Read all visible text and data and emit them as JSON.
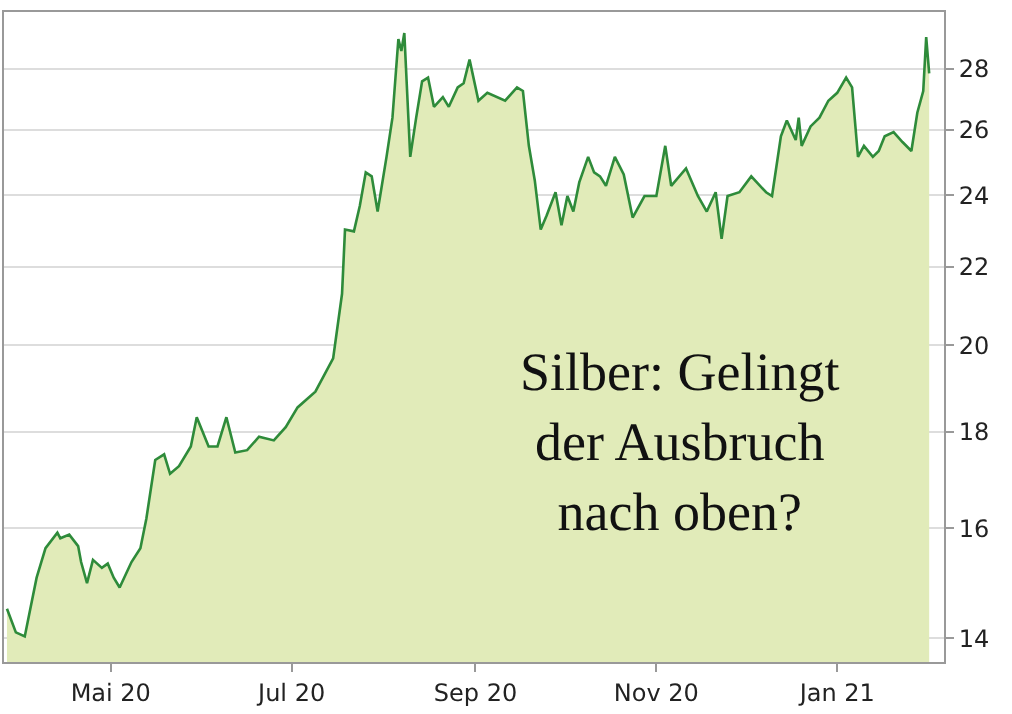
{
  "chart_data": {
    "type": "area",
    "log": "y",
    "grid": "y",
    "annotations": [
      {
        "text": "Silber: Gelingt\nder Ausbruch\nnach oben?"
      }
    ],
    "x": [
      "2020-03-27",
      "2020-03-30",
      "2020-04-02",
      "2020-04-04",
      "2020-04-06",
      "2020-04-09",
      "2020-04-13",
      "2020-04-14",
      "2020-04-17",
      "2020-04-20",
      "2020-04-21",
      "2020-04-23",
      "2020-04-25",
      "2020-04-28",
      "2020-04-30",
      "2020-05-02",
      "2020-05-04",
      "2020-05-08",
      "2020-05-11",
      "2020-05-13",
      "2020-05-16",
      "2020-05-19",
      "2020-05-21",
      "2020-05-24",
      "2020-05-28",
      "2020-05-30",
      "2020-06-03",
      "2020-06-06",
      "2020-06-09",
      "2020-06-12",
      "2020-06-16",
      "2020-06-20",
      "2020-06-25",
      "2020-06-29",
      "2020-07-03",
      "2020-07-09",
      "2020-07-15",
      "2020-07-18",
      "2020-07-19",
      "2020-07-22",
      "2020-07-24",
      "2020-07-26",
      "2020-07-28",
      "2020-07-30",
      "2020-08-02",
      "2020-08-04",
      "2020-08-06",
      "2020-08-07",
      "2020-08-08",
      "2020-08-10",
      "2020-08-12",
      "2020-08-14",
      "2020-08-16",
      "2020-08-18",
      "2020-08-21",
      "2020-08-23",
      "2020-08-26",
      "2020-08-28",
      "2020-08-30",
      "2020-09-02",
      "2020-09-05",
      "2020-09-11",
      "2020-09-15",
      "2020-09-17",
      "2020-09-19",
      "2020-09-21",
      "2020-09-23",
      "2020-09-25",
      "2020-09-28",
      "2020-09-30",
      "2020-10-02",
      "2020-10-04",
      "2020-10-06",
      "2020-10-09",
      "2020-10-11",
      "2020-10-13",
      "2020-10-15",
      "2020-10-18",
      "2020-10-21",
      "2020-10-24",
      "2020-10-28",
      "2020-11-01",
      "2020-11-04",
      "2020-11-06",
      "2020-11-11",
      "2020-11-15",
      "2020-11-18",
      "2020-11-21",
      "2020-11-23",
      "2020-11-25",
      "2020-11-29",
      "2020-12-03",
      "2020-12-08",
      "2020-12-10",
      "2020-12-13",
      "2020-12-15",
      "2020-12-18",
      "2020-12-19",
      "2020-12-20",
      "2020-12-23",
      "2020-12-26",
      "2020-12-29",
      "2021-01-01",
      "2021-01-04",
      "2021-01-06",
      "2021-01-08",
      "2021-01-10",
      "2021-01-13",
      "2021-01-15",
      "2021-01-17",
      "2021-01-20",
      "2021-01-23",
      "2021-01-26",
      "2021-01-28",
      "2021-01-30",
      "2021-01-31",
      "2021-02-01"
    ],
    "series": [
      {
        "color": "#2e8b3a",
        "values": [
          14.51,
          14.1,
          14.03,
          14.54,
          15.07,
          15.62,
          15.92,
          15.81,
          15.88,
          15.66,
          15.36,
          14.97,
          15.4,
          15.25,
          15.33,
          15.07,
          14.89,
          15.36,
          15.62,
          16.19,
          17.39,
          17.51,
          17.1,
          17.26,
          17.68,
          18.32,
          17.68,
          17.68,
          18.32,
          17.55,
          17.6,
          17.89,
          17.81,
          18.1,
          18.54,
          18.9,
          19.68,
          21.29,
          23.02,
          22.97,
          23.7,
          24.68,
          24.56,
          23.53,
          25.15,
          26.38,
          29.03,
          28.61,
          29.24,
          25.15,
          26.38,
          27.57,
          27.7,
          26.73,
          27.05,
          26.73,
          27.37,
          27.51,
          28.31,
          26.93,
          27.19,
          26.93,
          27.37,
          27.25,
          25.49,
          24.44,
          23.02,
          23.42,
          24.09,
          23.14,
          23.98,
          23.53,
          24.38,
          25.15,
          24.68,
          24.56,
          24.28,
          25.15,
          24.62,
          23.36,
          23.98,
          23.98,
          25.49,
          24.28,
          24.8,
          23.98,
          23.53,
          24.09,
          22.76,
          23.98,
          24.09,
          24.56,
          24.09,
          23.98,
          25.79,
          26.29,
          25.67,
          26.38,
          25.49,
          26.1,
          26.38,
          26.93,
          27.19,
          27.7,
          27.37,
          25.15,
          25.49,
          25.15,
          25.33,
          25.79,
          25.92,
          25.61,
          25.33,
          26.54,
          27.25,
          29.1,
          27.84
        ]
      }
    ],
    "xlim": [
      "2020-03-26",
      "2021-02-06"
    ],
    "xticks": [
      {
        "value": "2020-05-01",
        "label": "Mai 20"
      },
      {
        "value": "2020-07-01",
        "label": "Jul 20"
      },
      {
        "value": "2020-09-01",
        "label": "Sep 20"
      },
      {
        "value": "2020-11-01",
        "label": "Nov 20"
      },
      {
        "value": "2021-01-01",
        "label": "Jan 21"
      }
    ],
    "ylim": [
      13.6,
      30
    ],
    "yticks": [
      14,
      16,
      18,
      20,
      22,
      24,
      26,
      28
    ]
  }
}
